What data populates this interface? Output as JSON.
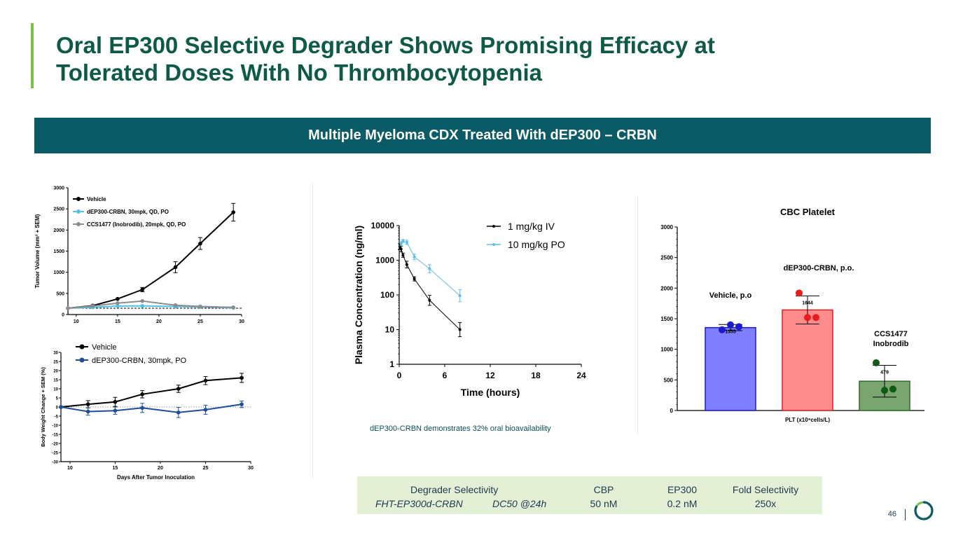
{
  "colors": {
    "accent_green": "#7ac143",
    "teal": "#0b5b66",
    "title_green": "#0f5a47",
    "vehicle": "#000000",
    "dep300": "#4dc3e8",
    "ccs": "#8c8c8c",
    "dep300_bw": "#1f4e97",
    "pk_iv": "#000000",
    "pk_po": "#5bbfe6",
    "bar_vehicle": "#7f7fff",
    "bar_dep300": "#ff8c8c",
    "bar_ccs": "#7aa56f"
  },
  "title": {
    "line1": "Oral EP300 Selective Degrader Shows Promising Efficacy at",
    "line2": "Tolerated Doses With No Thrombocytopenia"
  },
  "banner": {
    "text": "Multiple Myeloma CDX Treated With dEP300 – CRBN"
  },
  "caption": "dEP300-CRBN demonstrates 32% oral bioavailability",
  "selectivity": {
    "heading": "Degrader Selectivity",
    "compound": "FHT-EP300d-CRBN",
    "metric": "DC50 @24h",
    "columns": [
      {
        "header": "CBP",
        "value": "50 nM"
      },
      {
        "header": "EP300",
        "value": "0.2 nM"
      },
      {
        "header": "Fold Selectivity",
        "value": "250x"
      }
    ]
  },
  "page_number": "46",
  "chart_data": [
    {
      "id": "tumor",
      "type": "line",
      "title": "",
      "xlabel": "",
      "ylabel": "Tumor Volume (mm³ + SEM)",
      "xlim": [
        9,
        30
      ],
      "ylim": [
        0,
        3000
      ],
      "xticks": [
        10,
        15,
        20,
        25,
        30
      ],
      "yticks": [
        0,
        500,
        1000,
        1500,
        2000,
        2500,
        3000
      ],
      "baseline": 150,
      "series": [
        {
          "name": "Vehicle",
          "color": "#000000",
          "x": [
            9,
            12,
            15,
            18,
            22,
            25,
            29
          ],
          "y": [
            150,
            210,
            370,
            590,
            1120,
            1680,
            2420
          ],
          "err": [
            0,
            0,
            0,
            50,
            130,
            140,
            210
          ]
        },
        {
          "name": "dEP300-CRBN, 30mpk, QD, PO",
          "color": "#4dc3e8",
          "x": [
            9,
            12,
            15,
            18,
            22,
            25,
            29
          ],
          "y": [
            150,
            170,
            200,
            205,
            190,
            180,
            160
          ],
          "err": [
            0,
            0,
            0,
            0,
            0,
            0,
            0
          ]
        },
        {
          "name": "CCS1477 (Inobrodib), 20mpk, QD, PO",
          "color": "#8c8c8c",
          "x": [
            9,
            12,
            15,
            18,
            22,
            25,
            29
          ],
          "y": [
            150,
            200,
            270,
            320,
            220,
            190,
            170
          ],
          "err": [
            0,
            0,
            0,
            0,
            0,
            0,
            0
          ]
        }
      ]
    },
    {
      "id": "bodyweight",
      "type": "line",
      "title": "",
      "xlabel": "Days After Tumor Inoculation",
      "ylabel": "Body Weight Change + SEM (%)",
      "xlim": [
        9,
        30
      ],
      "ylim": [
        -30,
        30
      ],
      "xticks": [
        10,
        15,
        20,
        25,
        30
      ],
      "yticks": [
        -30,
        -25,
        -20,
        -15,
        -10,
        -5,
        0,
        5,
        10,
        15,
        20,
        25,
        30
      ],
      "series": [
        {
          "name": "Vehicle",
          "color": "#000000",
          "x": [
            9,
            12,
            15,
            18,
            22,
            25,
            29
          ],
          "y": [
            0,
            1.5,
            2.8,
            7,
            10,
            14.5,
            16
          ],
          "err": [
            0,
            2,
            2.5,
            2,
            2,
            2.2,
            2.5
          ]
        },
        {
          "name": "dEP300-CRBN, 30mpk, PO",
          "color": "#1f4e97",
          "x": [
            9,
            12,
            15,
            18,
            22,
            25,
            29
          ],
          "y": [
            0,
            -2.5,
            -2,
            -0.5,
            -3,
            -1.5,
            1.5
          ],
          "err": [
            0,
            2,
            2,
            2.5,
            2.8,
            2.5,
            1.8
          ]
        }
      ]
    },
    {
      "id": "pk",
      "type": "line",
      "title": "",
      "xlabel": "Time (hours)",
      "ylabel": "Plasma Concentration (ng/ml)",
      "yscale": "log",
      "xlim": [
        0,
        24
      ],
      "ylim": [
        1,
        10000
      ],
      "xticks": [
        0,
        6,
        12,
        18,
        24
      ],
      "yticks": [
        1,
        10,
        100,
        1000,
        10000
      ],
      "ytick_labels": [
        "1",
        "10",
        "100",
        "1000",
        "10000"
      ],
      "series": [
        {
          "name": "1 mg/kg IV",
          "color": "#000000",
          "x": [
            0.08,
            0.25,
            0.5,
            1,
            2,
            4,
            8
          ],
          "y": [
            2500,
            2100,
            1400,
            750,
            290,
            70,
            10
          ],
          "err_factor": [
            1.2,
            1.2,
            1.15,
            1.25,
            1.15,
            1.4,
            1.6
          ]
        },
        {
          "name": "10 mg/kg PO",
          "color": "#5bbfe6",
          "x": [
            0.25,
            0.5,
            1,
            2,
            4,
            8
          ],
          "y": [
            3000,
            3600,
            3300,
            1250,
            570,
            95
          ],
          "err_factor": [
            1.15,
            1.1,
            1.15,
            1.2,
            1.3,
            1.5
          ]
        }
      ]
    },
    {
      "id": "cbc",
      "type": "bar",
      "title": "CBC Platelet",
      "xlabel": "PLT (x10⁹cells/L)",
      "ylabel": "",
      "ylim": [
        0,
        3000
      ],
      "yticks": [
        0,
        500,
        1000,
        1500,
        2000,
        2500,
        3000
      ],
      "categories": [
        "Vehicle, p.o",
        "dEP300-CRBN, p.o.",
        "CCS1477 Inobrodib"
      ],
      "category_label_lines": [
        [
          "Vehicle, p.o"
        ],
        [
          "dEP300-CRBN, p.o."
        ],
        [
          "CCS1477",
          "Inobrodib"
        ]
      ],
      "values": [
        1355,
        1644,
        479
      ],
      "value_labels": [
        "1355",
        "1644",
        "479"
      ],
      "errors": [
        50,
        230,
        260
      ],
      "points": [
        [
          1320,
          1400,
          1370
        ],
        [
          1920,
          1520,
          1520
        ],
        [
          780,
          330,
          350
        ]
      ],
      "bar_colors": [
        "#7f7fff",
        "#ff8c8c",
        "#7aa56f"
      ],
      "edge_colors": [
        "#1a1ad1",
        "#d92020",
        "#2f6b2a"
      ],
      "point_colors": [
        "#1a1ad1",
        "#e81c1c",
        "#0e5a12"
      ]
    }
  ]
}
